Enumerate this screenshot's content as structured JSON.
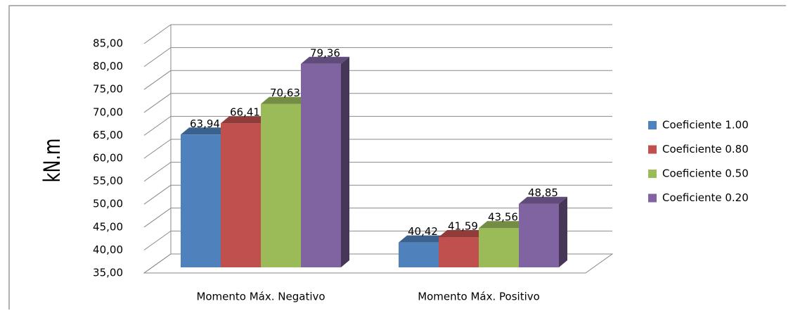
{
  "chart_data": {
    "type": "bar3d",
    "y_label": "kN.m",
    "categories": [
      "Momento Máx. Negativo",
      "Momento Máx. Positivo"
    ],
    "series": [
      {
        "name": "Coeficiente 1.00",
        "color": "#4f81bd",
        "values": [
          63.94,
          40.42
        ],
        "value_labels": [
          "63,94",
          "40,42"
        ]
      },
      {
        "name": "Coeficiente 0.80",
        "color": "#c0504d",
        "values": [
          66.41,
          41.59
        ],
        "value_labels": [
          "66,41",
          "41,59"
        ]
      },
      {
        "name": "Coeficiente 0.50",
        "color": "#9bbb59",
        "values": [
          70.63,
          43.56
        ],
        "value_labels": [
          "70,63",
          "43,56"
        ]
      },
      {
        "name": "Coeficiente 0.20",
        "color": "#8064a2",
        "values": [
          79.36,
          48.85
        ],
        "value_labels": [
          "79,36",
          "48,85"
        ]
      }
    ],
    "ylim": [
      35,
      85
    ],
    "yticks": [
      {
        "value": 35,
        "label": "35,00"
      },
      {
        "value": 40,
        "label": "40,00"
      },
      {
        "value": 45,
        "label": "45,00"
      },
      {
        "value": 50,
        "label": "50,00"
      },
      {
        "value": 55,
        "label": "55,00"
      },
      {
        "value": 60,
        "label": "60,00"
      },
      {
        "value": 65,
        "label": "65,00"
      },
      {
        "value": 70,
        "label": "70,00"
      },
      {
        "value": 75,
        "label": "75,00"
      },
      {
        "value": 80,
        "label": "80,00"
      },
      {
        "value": 85,
        "label": "85,00"
      }
    ],
    "grid": true,
    "legend": "right"
  }
}
